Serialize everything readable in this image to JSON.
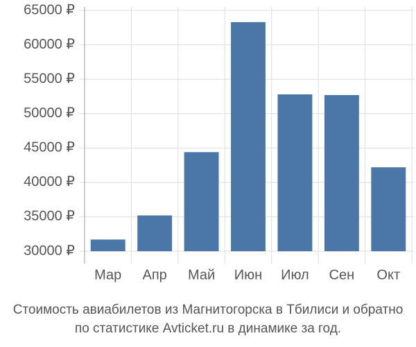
{
  "chart_data": {
    "type": "bar",
    "title": [
      "Стоимость авиабилетов из Магнитогорска в Тбилиси и обратно",
      "по статистике Avticket.ru в динамике за год."
    ],
    "categories": [
      "Мар",
      "Апр",
      "Май",
      "Июн",
      "Июл",
      "Сен",
      "Окт"
    ],
    "values": [
      31700,
      35200,
      44400,
      63300,
      52800,
      52700,
      42200
    ],
    "color": "#4a76a8",
    "ylim": [
      30000,
      65000
    ],
    "yticks": [
      {
        "value": 30000,
        "label": "30000 ₽"
      },
      {
        "value": 35000,
        "label": "35000 ₽"
      },
      {
        "value": 40000,
        "label": "40000 ₽"
      },
      {
        "value": 45000,
        "label": "45000 ₽"
      },
      {
        "value": 50000,
        "label": "50000 ₽"
      },
      {
        "value": 55000,
        "label": "55000 ₽"
      },
      {
        "value": 60000,
        "label": "60000 ₽"
      },
      {
        "value": 65000,
        "label": "65000 ₽"
      }
    ],
    "grid": true
  }
}
